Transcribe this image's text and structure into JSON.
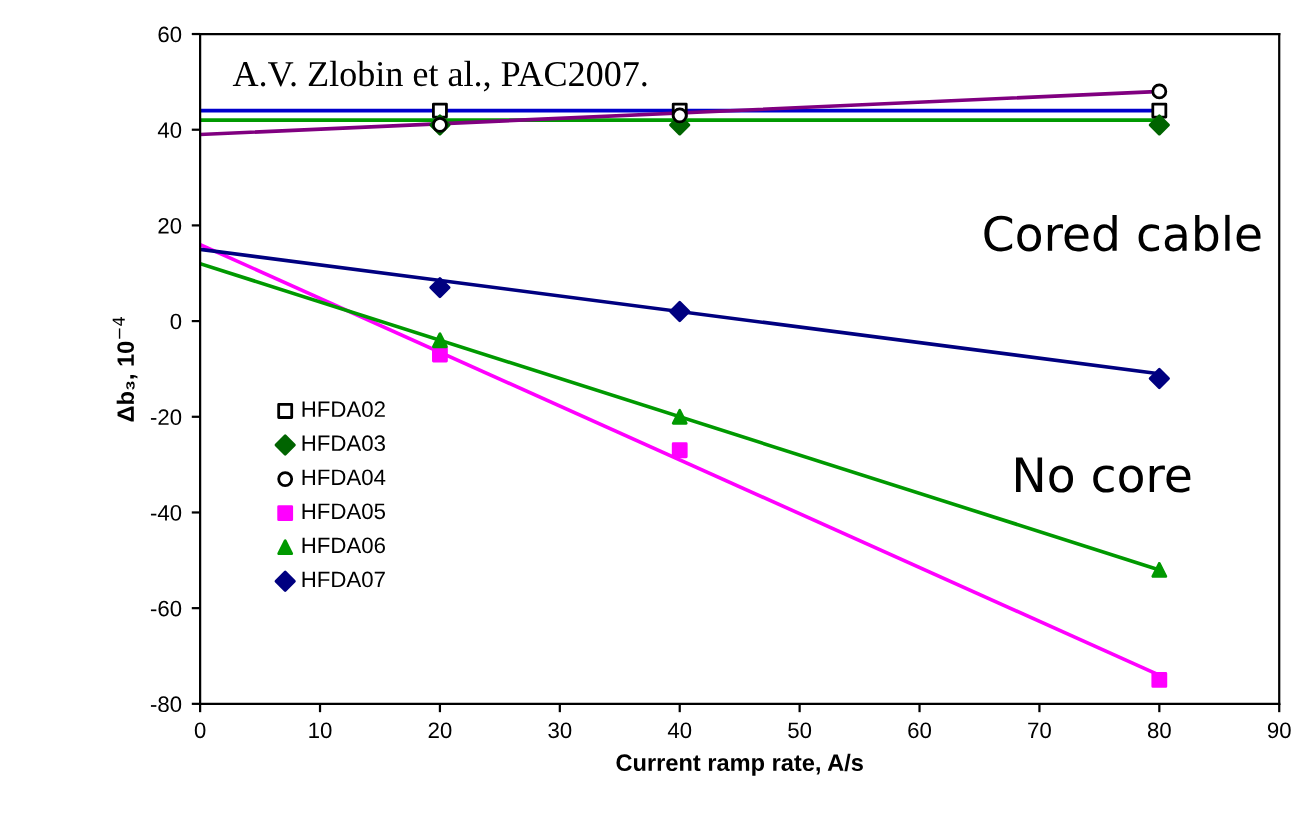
{
  "chart_data": {
    "type": "scatter",
    "xlabel": "Current ramp rate, A/s",
    "ylabel": "Δb₃, 10$^{−4}$",
    "xlim": [
      0,
      90
    ],
    "xticks": [
      0,
      10,
      20,
      30,
      40,
      50,
      60,
      70,
      80,
      90
    ],
    "ylim": [
      -80,
      60
    ],
    "yticks": [
      -80,
      -60,
      -40,
      -20,
      0,
      20,
      40,
      60
    ],
    "grid": false,
    "legend": "left",
    "series": [
      {
        "name": "HFDA02",
        "marker": "square_open",
        "color": "#000000",
        "x": [
          20,
          40,
          80
        ],
        "values": [
          44,
          44,
          44
        ]
      },
      {
        "name": "HFDA03",
        "marker": "diamond",
        "color": "#006400",
        "x": [
          20,
          40,
          80
        ],
        "values": [
          41,
          41,
          41
        ]
      },
      {
        "name": "HFDA04",
        "marker": "circle_open",
        "color": "#000000",
        "x": [
          20,
          40,
          80
        ],
        "values": [
          41,
          43,
          48
        ]
      },
      {
        "name": "HFDA05",
        "marker": "square",
        "color": "#ff00ff",
        "x": [
          20,
          40,
          80
        ],
        "values": [
          -7,
          -27,
          -75
        ]
      },
      {
        "name": "HFDA06",
        "marker": "triangle",
        "color": "#009900",
        "x": [
          20,
          40,
          80
        ],
        "values": [
          -4,
          -20,
          -52
        ]
      },
      {
        "name": "HFDA07",
        "marker": "diamond",
        "color": "#000080",
        "x": [
          20,
          40,
          80
        ],
        "values": [
          7,
          2,
          -12
        ]
      },
      {
        "type": "line",
        "color": "#0000cc",
        "x": [
          0,
          80
        ],
        "values": [
          44,
          44
        ]
      },
      {
        "type": "line",
        "color": "#009900",
        "x": [
          0,
          80
        ],
        "values": [
          42,
          42
        ]
      },
      {
        "type": "line",
        "color": "#800080",
        "x": [
          0,
          80
        ],
        "values": [
          39,
          48
        ]
      },
      {
        "type": "line",
        "color": "#ff00ff",
        "x": [
          0,
          80
        ],
        "values": [
          16,
          -74
        ]
      },
      {
        "type": "line",
        "color": "#009900",
        "x": [
          0,
          80
        ],
        "values": [
          12,
          -52
        ]
      },
      {
        "type": "line",
        "color": "#000080",
        "x": [
          0,
          80
        ],
        "values": [
          15,
          -11
        ]
      }
    ],
    "annotations": [
      "A.V. Zlobin et al., PAC2007.",
      "Cored cable",
      "No core"
    ]
  }
}
